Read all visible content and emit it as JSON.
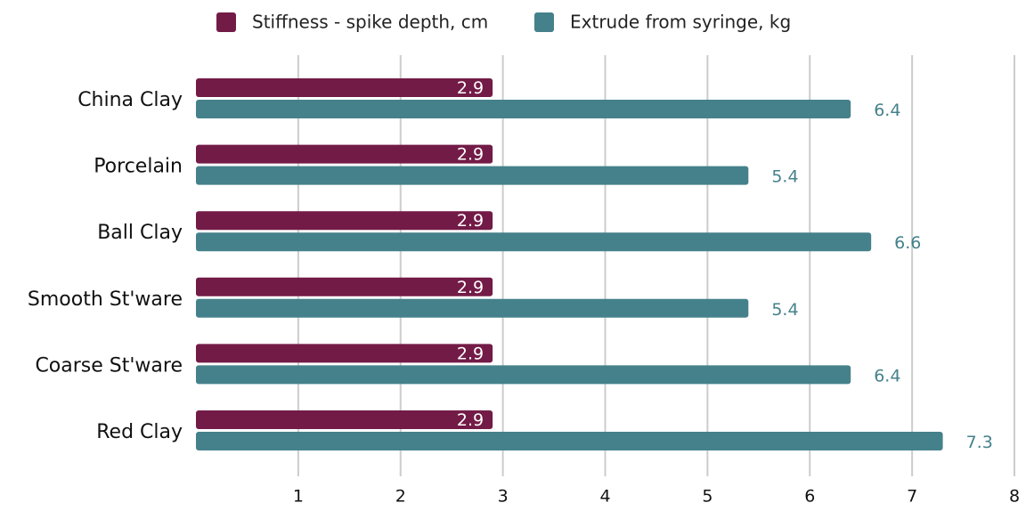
{
  "chart_data": {
    "type": "bar",
    "orientation": "horizontal",
    "categories": [
      "China Clay",
      "Porcelain",
      "Ball Clay",
      "Smooth St'ware",
      "Coarse St'ware",
      "Red Clay"
    ],
    "series": [
      {
        "name": "Stiffness - spike depth, cm",
        "color": "#731b47",
        "values": [
          2.9,
          2.9,
          2.9,
          2.9,
          2.9,
          2.9
        ]
      },
      {
        "name": "Extrude from syringe, kg",
        "color": "#45818b",
        "values": [
          6.4,
          5.4,
          6.6,
          5.4,
          6.4,
          7.3
        ]
      }
    ],
    "xlim": [
      0,
      8
    ],
    "xticks": [
      1,
      2,
      3,
      4,
      5,
      6,
      7,
      8
    ],
    "grid": true,
    "legend": "top"
  }
}
